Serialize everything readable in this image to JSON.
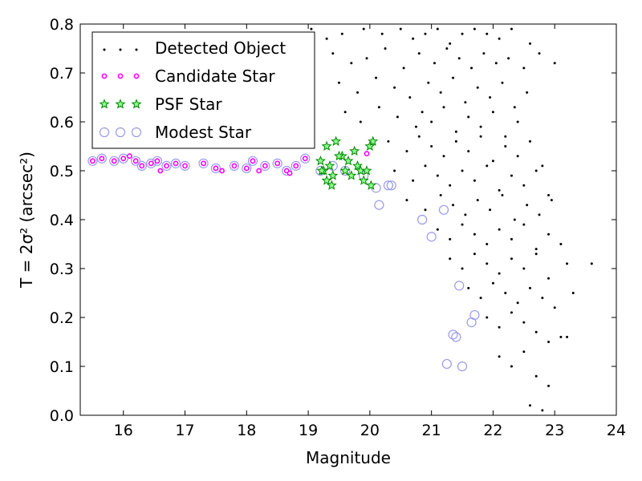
{
  "chart_data": {
    "type": "scatter",
    "xlabel": "Magnitude",
    "ylabel": "T = 2σ² (arcsec²)",
    "xlim": [
      15.3,
      24
    ],
    "ylim": [
      0,
      0.8
    ],
    "xticks": [
      16,
      17,
      18,
      19,
      20,
      21,
      22,
      23,
      24
    ],
    "xtick_labels": [
      "16",
      "17",
      "18",
      "19",
      "20",
      "21",
      "22",
      "23",
      "24"
    ],
    "yticks": [
      0.0,
      0.1,
      0.2,
      0.3,
      0.4,
      0.5,
      0.6,
      0.7,
      0.8
    ],
    "ytick_labels": [
      "0.0",
      "0.1",
      "0.2",
      "0.3",
      "0.4",
      "0.5",
      "0.6",
      "0.7",
      "0.8"
    ],
    "grid": false,
    "legend_position": "top-left",
    "legend": [
      {
        "label": "Detected Object",
        "marker": "dot",
        "color": "#000000"
      },
      {
        "label": "Candidate Star",
        "marker": "circle-small",
        "color": "#ff00ff"
      },
      {
        "label": "PSF Star",
        "marker": "star",
        "color": "#00aa00"
      },
      {
        "label": "Modest Star",
        "marker": "circle-open",
        "color": "#8a8aee"
      }
    ],
    "series": [
      {
        "name": "Detected Object",
        "x": [
          19.05,
          19.3,
          19.55,
          19.9,
          20.2,
          20.5,
          20.7,
          20.9,
          21.1,
          21.3,
          21.5,
          21.7,
          21.9,
          22.1,
          22.3,
          22.6,
          19.4,
          19.7,
          19.95,
          20.25,
          20.55,
          20.8,
          21.05,
          21.25,
          21.45,
          21.65,
          21.85,
          22.05,
          22.25,
          22.5,
          22.75,
          23.0,
          19.5,
          19.8,
          20.1,
          20.4,
          20.65,
          20.95,
          21.15,
          21.35,
          21.55,
          21.75,
          21.95,
          22.15,
          22.35,
          22.55,
          19.6,
          19.85,
          20.15,
          20.45,
          20.75,
          20.85,
          21.0,
          21.2,
          21.4,
          21.6,
          21.8,
          22.0,
          22.2,
          22.4,
          20.3,
          20.6,
          20.8,
          21.0,
          21.2,
          21.4,
          21.6,
          21.8,
          22.0,
          22.2,
          22.4,
          22.6,
          22.8,
          20.4,
          20.7,
          20.9,
          21.1,
          21.3,
          21.5,
          21.7,
          21.9,
          22.1,
          22.3,
          22.5,
          22.7,
          22.9,
          20.6,
          20.9,
          21.15,
          21.35,
          21.55,
          21.75,
          21.95,
          22.15,
          22.35,
          22.55,
          22.75,
          22.95,
          21.1,
          21.3,
          21.5,
          21.7,
          21.9,
          22.1,
          22.3,
          22.5,
          22.7,
          22.9,
          23.1,
          21.3,
          21.5,
          21.7,
          21.9,
          22.1,
          22.3,
          22.5,
          22.7,
          22.9,
          23.2,
          21.6,
          21.8,
          22.0,
          22.2,
          22.4,
          22.6,
          22.8,
          23.0,
          23.3,
          21.9,
          22.1,
          22.3,
          22.5,
          22.7,
          22.9,
          23.1,
          23.6,
          22.1,
          22.3,
          22.5,
          22.7,
          22.9,
          23.2,
          22.6,
          22.8
        ],
        "y": [
          0.79,
          0.77,
          0.78,
          0.79,
          0.78,
          0.79,
          0.77,
          0.78,
          0.79,
          0.76,
          0.78,
          0.79,
          0.78,
          0.77,
          0.79,
          0.76,
          0.74,
          0.72,
          0.73,
          0.75,
          0.71,
          0.74,
          0.72,
          0.75,
          0.73,
          0.71,
          0.74,
          0.72,
          0.73,
          0.71,
          0.74,
          0.72,
          0.68,
          0.66,
          0.69,
          0.67,
          0.65,
          0.68,
          0.66,
          0.69,
          0.64,
          0.67,
          0.65,
          0.68,
          0.63,
          0.66,
          0.62,
          0.6,
          0.63,
          0.61,
          0.59,
          0.62,
          0.6,
          0.63,
          0.58,
          0.61,
          0.59,
          0.62,
          0.57,
          0.6,
          0.56,
          0.54,
          0.57,
          0.55,
          0.53,
          0.56,
          0.54,
          0.57,
          0.52,
          0.55,
          0.53,
          0.56,
          0.51,
          0.5,
          0.48,
          0.51,
          0.49,
          0.47,
          0.5,
          0.48,
          0.51,
          0.46,
          0.49,
          0.47,
          0.5,
          0.45,
          0.44,
          0.42,
          0.45,
          0.43,
          0.41,
          0.44,
          0.42,
          0.45,
          0.4,
          0.43,
          0.41,
          0.44,
          0.38,
          0.36,
          0.39,
          0.37,
          0.35,
          0.38,
          0.36,
          0.39,
          0.34,
          0.37,
          0.35,
          0.32,
          0.3,
          0.33,
          0.31,
          0.29,
          0.32,
          0.3,
          0.33,
          0.28,
          0.31,
          0.26,
          0.24,
          0.27,
          0.25,
          0.23,
          0.26,
          0.24,
          0.22,
          0.25,
          0.2,
          0.18,
          0.21,
          0.19,
          0.17,
          0.15,
          0.16,
          0.31,
          0.12,
          0.1,
          0.13,
          0.08,
          0.06,
          0.16,
          0.02,
          0.01
        ]
      },
      {
        "name": "Candidate Star",
        "x": [
          15.5,
          15.65,
          15.85,
          16.0,
          16.2,
          16.3,
          16.45,
          16.55,
          16.7,
          16.85,
          17.0,
          17.3,
          17.5,
          17.8,
          18.0,
          18.1,
          18.3,
          18.5,
          18.65,
          18.8,
          18.95,
          19.75,
          19.95,
          16.1,
          16.6,
          17.6,
          18.2,
          18.7
        ],
        "y": [
          0.52,
          0.525,
          0.52,
          0.525,
          0.52,
          0.51,
          0.515,
          0.52,
          0.51,
          0.515,
          0.51,
          0.515,
          0.505,
          0.51,
          0.505,
          0.52,
          0.51,
          0.515,
          0.5,
          0.51,
          0.525,
          0.54,
          0.535,
          0.53,
          0.5,
          0.5,
          0.5,
          0.495
        ]
      },
      {
        "name": "PSF Star",
        "x": [
          19.2,
          19.25,
          19.3,
          19.35,
          19.4,
          19.45,
          19.55,
          19.6,
          19.65,
          19.7,
          19.8,
          19.85,
          19.9,
          19.95,
          20.0,
          20.05,
          19.3,
          19.5,
          19.75,
          19.22,
          19.38,
          20.02
        ],
        "y": [
          0.52,
          0.5,
          0.55,
          0.51,
          0.49,
          0.56,
          0.53,
          0.5,
          0.52,
          0.49,
          0.51,
          0.5,
          0.48,
          0.5,
          0.55,
          0.56,
          0.48,
          0.53,
          0.54,
          0.5,
          0.47,
          0.47
        ]
      },
      {
        "name": "Modest Star",
        "x": [
          15.5,
          15.65,
          15.85,
          16.0,
          16.2,
          16.3,
          16.45,
          16.55,
          16.7,
          16.85,
          17.0,
          17.3,
          17.5,
          17.8,
          18.0,
          18.1,
          18.3,
          18.5,
          18.65,
          18.8,
          18.95,
          19.2,
          19.4,
          19.6,
          19.9,
          20.1,
          20.3,
          20.35,
          20.15,
          20.85,
          21.0,
          21.2,
          21.25,
          21.35,
          21.4,
          21.45,
          21.5,
          21.65,
          21.7
        ],
        "y": [
          0.52,
          0.525,
          0.52,
          0.525,
          0.52,
          0.51,
          0.515,
          0.52,
          0.51,
          0.515,
          0.51,
          0.515,
          0.505,
          0.51,
          0.505,
          0.52,
          0.51,
          0.515,
          0.5,
          0.51,
          0.525,
          0.5,
          0.51,
          0.5,
          0.49,
          0.465,
          0.47,
          0.47,
          0.43,
          0.4,
          0.365,
          0.42,
          0.105,
          0.165,
          0.16,
          0.265,
          0.1,
          0.19,
          0.205
        ]
      }
    ]
  }
}
